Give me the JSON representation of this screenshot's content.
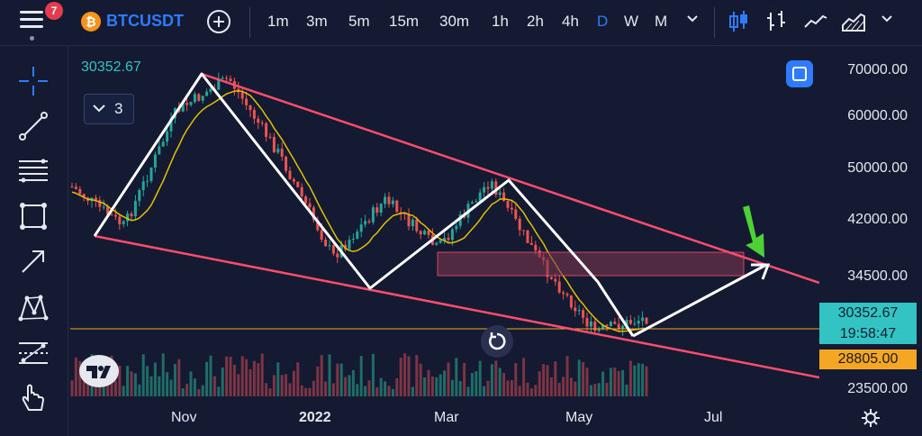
{
  "header": {
    "notifications": "7",
    "coin_icon": "bitcoin-icon",
    "coin_glyph": "₿",
    "symbol": "BTCUSDT",
    "timeframes": [
      "1m",
      "3m",
      "5m",
      "15m",
      "30m",
      "1h",
      "2h",
      "4h",
      "D",
      "W",
      "M"
    ],
    "active_timeframe": "D",
    "accent": "#2f7bff"
  },
  "chart": {
    "ohlc_value": "30352.67",
    "indicators_count": "3",
    "price_scale": [
      "70000.00",
      "60000.00",
      "50000.00",
      "42000.00",
      "34500.00",
      "23500.00"
    ],
    "current_price": "30352.67",
    "countdown": "19:58:47",
    "low_marker": "28805.00",
    "time_labels": [
      "Nov",
      "2022",
      "Mar",
      "May",
      "Jul"
    ],
    "colors": {
      "up": "#26a69a",
      "down": "#ef5350",
      "channel": "#ff4d6d",
      "ma": "#e3c000",
      "zigzag": "#ffffff",
      "arrow": "#4cd137"
    }
  },
  "chart_data": {
    "type": "line",
    "title": "",
    "series": [
      {
        "values": [
          47000,
          41000,
          61000,
          69000,
          52000,
          37000,
          45000,
          38000,
          48000,
          36000,
          29000,
          30352.67
        ]
      }
    ],
    "ylim": [
      23500,
      70000
    ]
  }
}
